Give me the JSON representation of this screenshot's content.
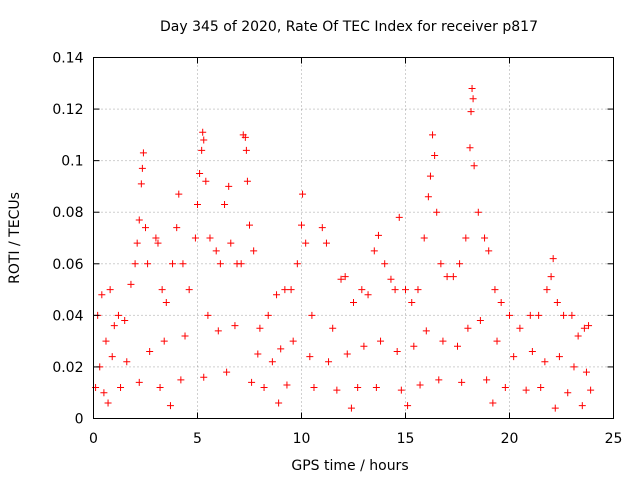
{
  "chart_data": {
    "type": "scatter",
    "title": "Day 345 of 2020, Rate Of TEC Index for receiver p817",
    "xlabel": "GPS time / hours",
    "ylabel": "ROTI / TECUs",
    "xlim": [
      0,
      25
    ],
    "ylim": [
      0,
      0.14
    ],
    "xticks": [
      0,
      5,
      10,
      15,
      20,
      25
    ],
    "xtick_labels": [
      "0",
      "5",
      "10",
      "15",
      "20",
      "25"
    ],
    "yticks": [
      0,
      0.02,
      0.04,
      0.06,
      0.08,
      0.1,
      0.12,
      0.14
    ],
    "ytick_labels": [
      "0",
      "0.02",
      "0.04",
      "0.06",
      "0.08",
      "0.1",
      "0.12",
      "0.14"
    ],
    "grid": true,
    "marker": "plus",
    "color": "#ff0000",
    "series": [
      {
        "name": "ROTI",
        "points": [
          [
            0.1,
            0.012
          ],
          [
            0.2,
            0.04
          ],
          [
            0.4,
            0.048
          ],
          [
            0.6,
            0.03
          ],
          [
            0.8,
            0.05
          ],
          [
            1.0,
            0.036
          ],
          [
            1.2,
            0.04
          ],
          [
            1.5,
            0.038
          ],
          [
            1.8,
            0.052
          ],
          [
            2.0,
            0.06
          ],
          [
            2.1,
            0.068
          ],
          [
            2.2,
            0.077
          ],
          [
            2.3,
            0.091
          ],
          [
            2.35,
            0.097
          ],
          [
            2.4,
            0.103
          ],
          [
            2.5,
            0.074
          ],
          [
            2.6,
            0.06
          ],
          [
            3.0,
            0.07
          ],
          [
            3.1,
            0.068
          ],
          [
            3.3,
            0.05
          ],
          [
            3.5,
            0.045
          ],
          [
            3.8,
            0.06
          ],
          [
            4.0,
            0.074
          ],
          [
            4.1,
            0.087
          ],
          [
            4.3,
            0.06
          ],
          [
            4.6,
            0.05
          ],
          [
            4.9,
            0.07
          ],
          [
            5.0,
            0.083
          ],
          [
            5.1,
            0.095
          ],
          [
            5.2,
            0.104
          ],
          [
            5.25,
            0.111
          ],
          [
            5.3,
            0.108
          ],
          [
            5.4,
            0.092
          ],
          [
            5.6,
            0.07
          ],
          [
            5.9,
            0.065
          ],
          [
            6.1,
            0.06
          ],
          [
            6.3,
            0.083
          ],
          [
            6.5,
            0.09
          ],
          [
            6.6,
            0.068
          ],
          [
            6.9,
            0.06
          ],
          [
            7.1,
            0.06
          ],
          [
            7.2,
            0.11
          ],
          [
            7.3,
            0.109
          ],
          [
            7.35,
            0.104
          ],
          [
            7.4,
            0.092
          ],
          [
            7.5,
            0.075
          ],
          [
            7.7,
            0.065
          ],
          [
            8.0,
            0.035
          ],
          [
            8.4,
            0.04
          ],
          [
            8.8,
            0.048
          ],
          [
            9.2,
            0.05
          ],
          [
            9.5,
            0.05
          ],
          [
            9.8,
            0.06
          ],
          [
            10.0,
            0.075
          ],
          [
            10.05,
            0.087
          ],
          [
            10.2,
            0.068
          ],
          [
            10.5,
            0.04
          ],
          [
            11.0,
            0.074
          ],
          [
            11.2,
            0.068
          ],
          [
            11.5,
            0.035
          ],
          [
            11.9,
            0.054
          ],
          [
            12.1,
            0.055
          ],
          [
            12.5,
            0.045
          ],
          [
            12.9,
            0.05
          ],
          [
            13.2,
            0.048
          ],
          [
            13.5,
            0.065
          ],
          [
            13.7,
            0.071
          ],
          [
            14.0,
            0.06
          ],
          [
            14.3,
            0.054
          ],
          [
            14.5,
            0.05
          ],
          [
            14.7,
            0.078
          ],
          [
            15.0,
            0.05
          ],
          [
            15.3,
            0.045
          ],
          [
            15.6,
            0.05
          ],
          [
            15.9,
            0.07
          ],
          [
            16.1,
            0.086
          ],
          [
            16.2,
            0.094
          ],
          [
            16.3,
            0.11
          ],
          [
            16.4,
            0.102
          ],
          [
            16.5,
            0.08
          ],
          [
            16.7,
            0.06
          ],
          [
            17.0,
            0.055
          ],
          [
            17.3,
            0.055
          ],
          [
            17.6,
            0.06
          ],
          [
            17.9,
            0.07
          ],
          [
            18.1,
            0.105
          ],
          [
            18.15,
            0.119
          ],
          [
            18.2,
            0.128
          ],
          [
            18.25,
            0.124
          ],
          [
            18.3,
            0.098
          ],
          [
            18.5,
            0.08
          ],
          [
            18.8,
            0.07
          ],
          [
            19.0,
            0.065
          ],
          [
            19.3,
            0.05
          ],
          [
            19.6,
            0.045
          ],
          [
            20.0,
            0.04
          ],
          [
            20.5,
            0.035
          ],
          [
            21.0,
            0.04
          ],
          [
            21.4,
            0.04
          ],
          [
            21.8,
            0.05
          ],
          [
            22.0,
            0.055
          ],
          [
            22.1,
            0.062
          ],
          [
            22.3,
            0.045
          ],
          [
            22.6,
            0.04
          ],
          [
            23.0,
            0.04
          ],
          [
            23.3,
            0.032
          ],
          [
            23.6,
            0.035
          ],
          [
            23.8,
            0.036
          ],
          [
            0.3,
            0.02
          ],
          [
            0.9,
            0.024
          ],
          [
            1.6,
            0.022
          ],
          [
            2.7,
            0.026
          ],
          [
            3.4,
            0.03
          ],
          [
            4.4,
            0.032
          ],
          [
            5.5,
            0.04
          ],
          [
            6.0,
            0.034
          ],
          [
            6.8,
            0.036
          ],
          [
            7.9,
            0.025
          ],
          [
            8.6,
            0.022
          ],
          [
            9.0,
            0.027
          ],
          [
            9.6,
            0.03
          ],
          [
            10.4,
            0.024
          ],
          [
            11.3,
            0.022
          ],
          [
            12.2,
            0.025
          ],
          [
            13.0,
            0.028
          ],
          [
            13.8,
            0.03
          ],
          [
            14.6,
            0.026
          ],
          [
            15.4,
            0.028
          ],
          [
            16.0,
            0.034
          ],
          [
            16.8,
            0.03
          ],
          [
            17.5,
            0.028
          ],
          [
            18.0,
            0.035
          ],
          [
            18.6,
            0.038
          ],
          [
            19.4,
            0.03
          ],
          [
            20.2,
            0.024
          ],
          [
            21.1,
            0.026
          ],
          [
            21.7,
            0.022
          ],
          [
            22.4,
            0.024
          ],
          [
            23.1,
            0.02
          ],
          [
            23.7,
            0.018
          ],
          [
            0.5,
            0.01
          ],
          [
            1.3,
            0.012
          ],
          [
            2.2,
            0.014
          ],
          [
            3.2,
            0.012
          ],
          [
            4.2,
            0.015
          ],
          [
            5.3,
            0.016
          ],
          [
            6.4,
            0.018
          ],
          [
            7.6,
            0.014
          ],
          [
            8.2,
            0.012
          ],
          [
            9.3,
            0.013
          ],
          [
            10.6,
            0.012
          ],
          [
            11.7,
            0.011
          ],
          [
            12.7,
            0.012
          ],
          [
            13.6,
            0.012
          ],
          [
            14.8,
            0.011
          ],
          [
            15.7,
            0.013
          ],
          [
            16.6,
            0.015
          ],
          [
            17.7,
            0.014
          ],
          [
            18.9,
            0.015
          ],
          [
            19.8,
            0.012
          ],
          [
            20.8,
            0.011
          ],
          [
            21.5,
            0.012
          ],
          [
            22.8,
            0.01
          ],
          [
            23.9,
            0.011
          ],
          [
            0.7,
            0.006
          ],
          [
            3.7,
            0.005
          ],
          [
            8.9,
            0.006
          ],
          [
            12.4,
            0.004
          ],
          [
            15.1,
            0.005
          ],
          [
            19.2,
            0.006
          ],
          [
            22.2,
            0.004
          ],
          [
            23.5,
            0.005
          ]
        ]
      }
    ]
  }
}
